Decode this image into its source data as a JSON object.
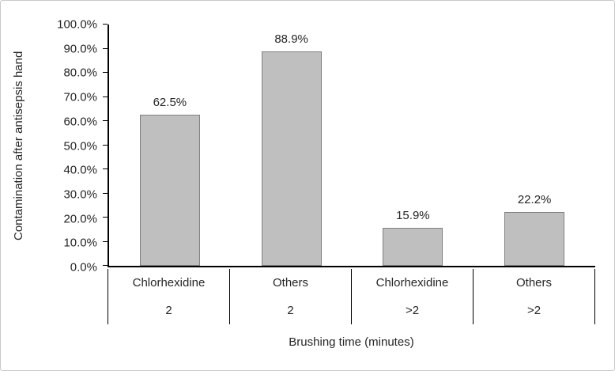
{
  "chart_data": {
    "type": "bar",
    "title": "",
    "xlabel": "Brushing time (minutes)",
    "ylabel": "Contamination after antisepsis hand",
    "categories": [
      {
        "label": "Chlorhexidine",
        "time": "2"
      },
      {
        "label": "Others",
        "time": "2"
      },
      {
        "label": "Chlorhexidine",
        "time": ">2"
      },
      {
        "label": "Others",
        "time": ">2"
      }
    ],
    "values": [
      62.5,
      88.9,
      15.9,
      22.2
    ],
    "value_labels": [
      "62.5%",
      "88.9%",
      "15.9%",
      "22.2%"
    ],
    "ylim": [
      0,
      100
    ],
    "yticks": [
      "0.0%",
      "10.0%",
      "20.0%",
      "30.0%",
      "40.0%",
      "50.0%",
      "60.0%",
      "70.0%",
      "80.0%",
      "90.0%",
      "100.0%"
    ],
    "grid": false,
    "legend": null,
    "bar_fill_color": "#bfbfbf",
    "bar_border_color": "#7f7f7f",
    "axis_color": "#000000"
  }
}
